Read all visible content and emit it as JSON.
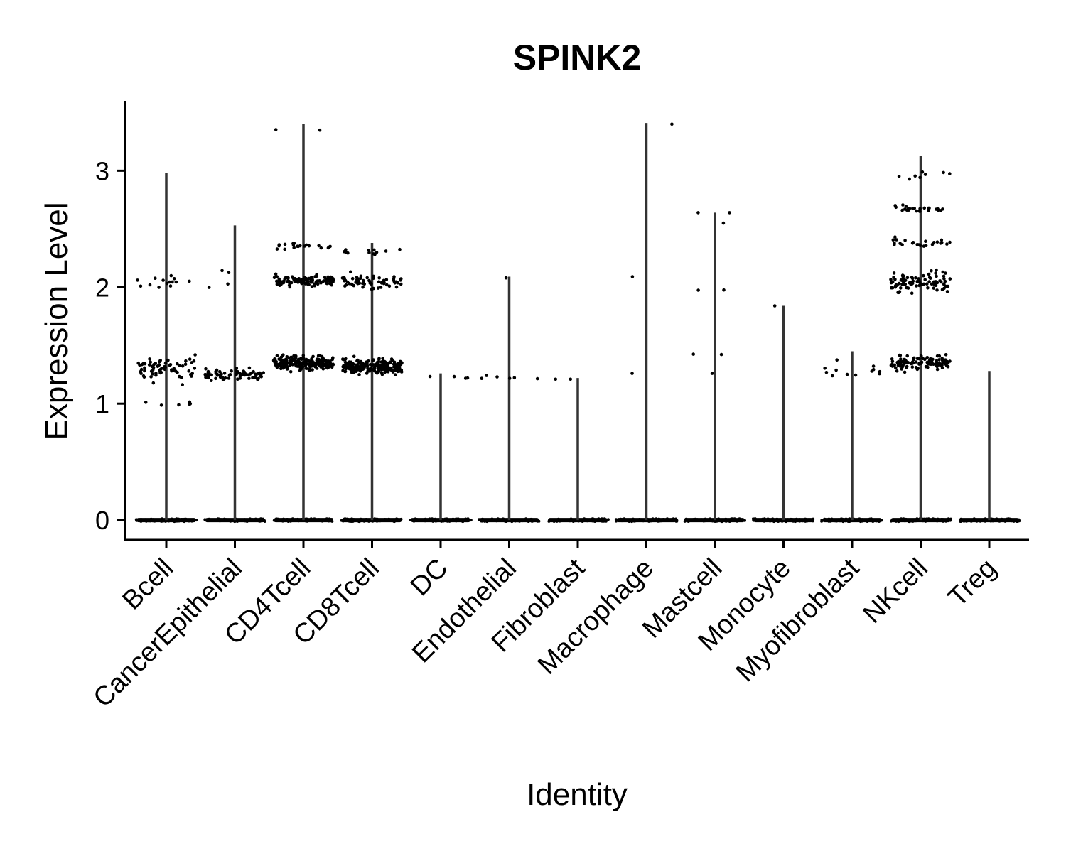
{
  "chart_data": {
    "type": "violin",
    "title": "SPINK2",
    "xlabel": "Identity",
    "ylabel": "Expression Level",
    "ylim": [
      -0.17,
      3.6
    ],
    "yticks": [
      0,
      1,
      2,
      3
    ],
    "categories": [
      "Bcell",
      "CancerEpithelial",
      "CD4Tcell",
      "CD8Tcell",
      "DC",
      "Endothelial",
      "Fibroblast",
      "Macrophage",
      "Mastcell",
      "Monocyte",
      "Myofibroblast",
      "NKcell",
      "Treg"
    ],
    "max_values": [
      2.98,
      2.53,
      3.4,
      2.38,
      1.26,
      2.09,
      1.22,
      3.41,
      2.64,
      1.84,
      1.45,
      3.13,
      1.28
    ],
    "point_levels": [
      [
        {
          "y": 1.3,
          "n": 70,
          "spread": 0.18
        },
        {
          "y": 2.05,
          "n": 14,
          "spread": 0.12
        },
        {
          "y": 1.0,
          "n": 6,
          "spread": 0.1
        }
      ],
      [
        {
          "y": 1.25,
          "n": 70,
          "spread": 0.08
        },
        {
          "y": 2.1,
          "n": 4,
          "spread": 0.2
        }
      ],
      [
        {
          "y": 1.35,
          "n": 220,
          "spread": 0.1
        },
        {
          "y": 2.05,
          "n": 130,
          "spread": 0.08
        },
        {
          "y": 2.35,
          "n": 20,
          "spread": 0.05
        },
        {
          "y": 3.35,
          "n": 2,
          "spread": 0.04
        }
      ],
      [
        {
          "y": 1.32,
          "n": 200,
          "spread": 0.1
        },
        {
          "y": 2.05,
          "n": 60,
          "spread": 0.1
        },
        {
          "y": 2.3,
          "n": 12,
          "spread": 0.06
        }
      ],
      [
        {
          "y": 1.23,
          "n": 4,
          "spread": 0.03
        }
      ],
      [
        {
          "y": 1.23,
          "n": 6,
          "spread": 0.04
        },
        {
          "y": 2.08,
          "n": 1,
          "spread": 0.0
        }
      ],
      [
        {
          "y": 1.21,
          "n": 2,
          "spread": 0.0
        }
      ],
      [
        {
          "y": 3.4,
          "n": 1,
          "spread": 0.0
        },
        {
          "y": 2.09,
          "n": 1,
          "spread": 0.0
        },
        {
          "y": 1.26,
          "n": 1,
          "spread": 0.0
        }
      ],
      [
        {
          "y": 2.64,
          "n": 2,
          "spread": 0.0
        },
        {
          "y": 2.55,
          "n": 1,
          "spread": 0.0
        },
        {
          "y": 1.98,
          "n": 2,
          "spread": 0.02
        },
        {
          "y": 1.42,
          "n": 2,
          "spread": 0.02
        },
        {
          "y": 1.26,
          "n": 1,
          "spread": 0.0
        }
      ],
      [
        {
          "y": 1.84,
          "n": 1,
          "spread": 0.0
        }
      ],
      [
        {
          "y": 1.3,
          "n": 12,
          "spread": 0.12
        }
      ],
      [
        {
          "y": 1.35,
          "n": 110,
          "spread": 0.1
        },
        {
          "y": 2.05,
          "n": 90,
          "spread": 0.15
        },
        {
          "y": 2.38,
          "n": 25,
          "spread": 0.06
        },
        {
          "y": 2.68,
          "n": 25,
          "spread": 0.05
        },
        {
          "y": 2.95,
          "n": 8,
          "spread": 0.08
        }
      ],
      []
    ],
    "zero_band_points_per_group": 60,
    "grid": false,
    "legend": "none",
    "colors": {
      "line": "#333333",
      "point": "#000000",
      "axis": "#000000"
    }
  }
}
